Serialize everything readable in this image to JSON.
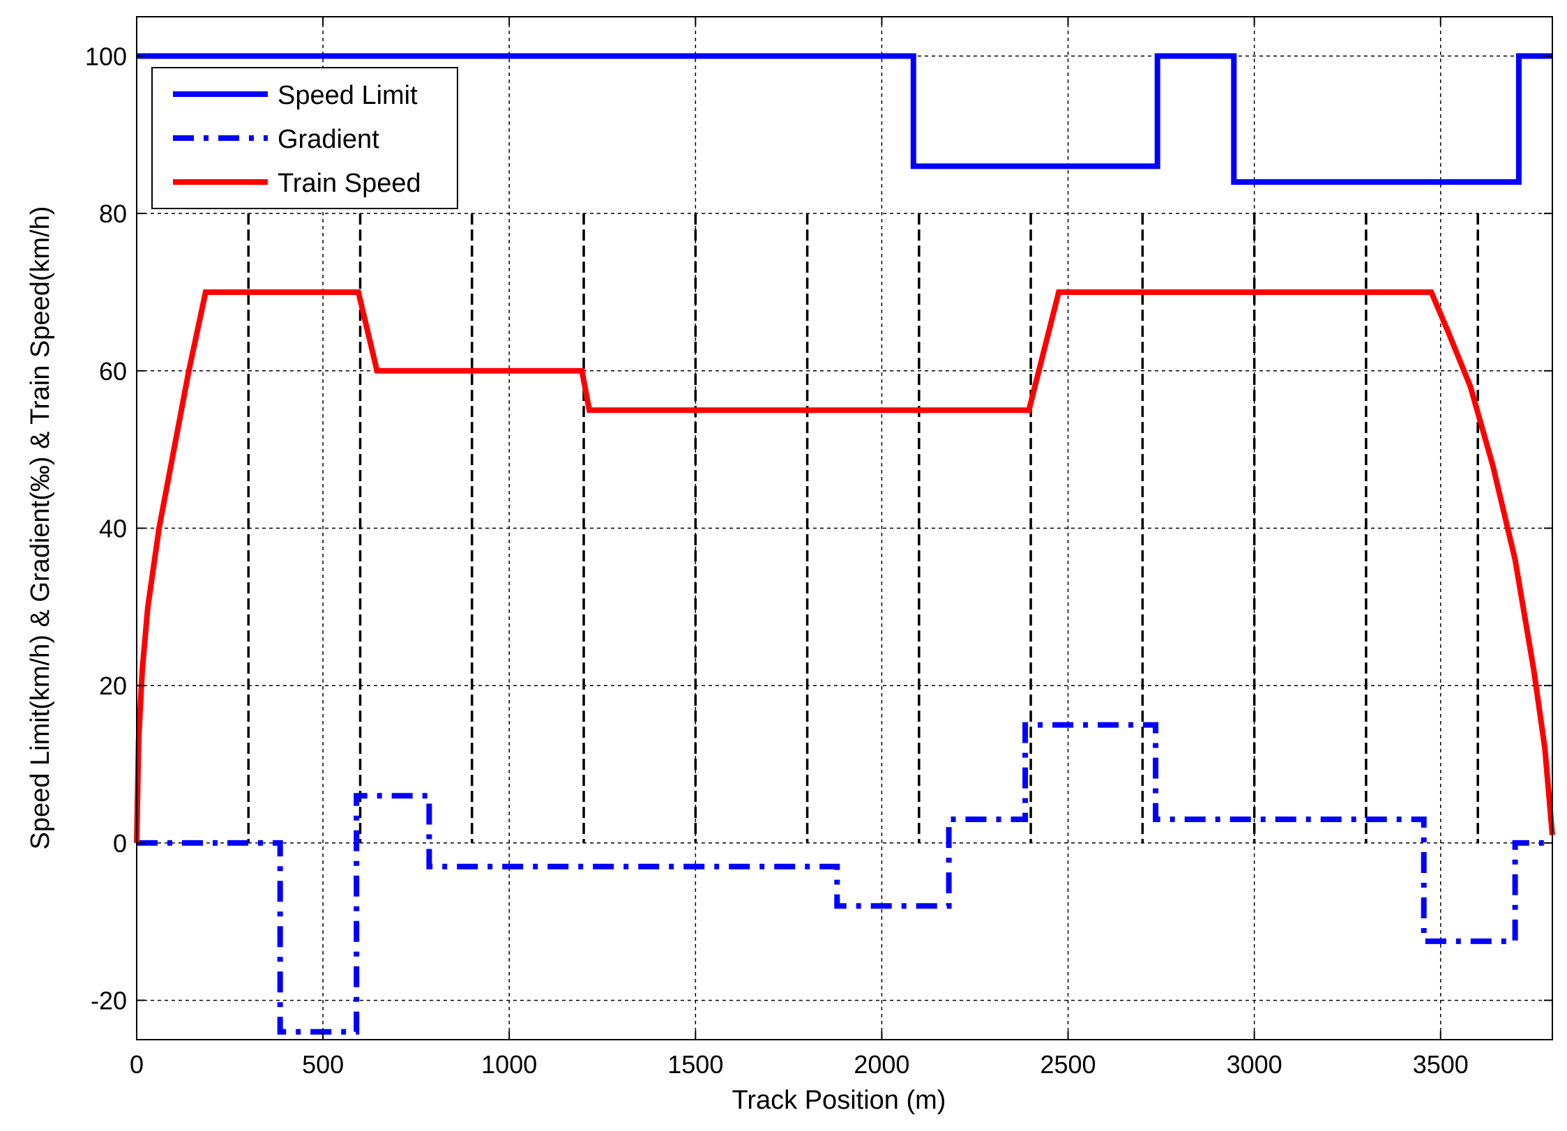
{
  "chart_data": {
    "type": "line",
    "xlabel": "Track Position (m)",
    "ylabel": "Speed Limit(km/h) & Gradient(‰) & Train Speed(km/h)",
    "xlim": [
      0,
      3800
    ],
    "ylim": [
      -25,
      105
    ],
    "xticks": [
      0,
      500,
      1000,
      1500,
      2000,
      2500,
      3000,
      3500
    ],
    "yticks": [
      -20,
      0,
      20,
      40,
      60,
      80,
      100
    ],
    "xtick_labels": [
      "0",
      "500",
      "1000",
      "1500",
      "2000",
      "2500",
      "3000",
      "3500"
    ],
    "ytick_labels": [
      "-20",
      "0",
      "20",
      "40",
      "60",
      "80",
      "100"
    ],
    "grid": true,
    "legend_position": "top-left",
    "section_boundaries_x": [
      300,
      600,
      900,
      1200,
      1500,
      1800,
      2100,
      2400,
      2700,
      3000,
      3300,
      3600
    ],
    "series": [
      {
        "name": "Speed Limit",
        "color": "#0000ff",
        "style": "solid",
        "points": [
          [
            0,
            100
          ],
          [
            2085,
            100
          ],
          [
            2085,
            86
          ],
          [
            2740,
            86
          ],
          [
            2740,
            100
          ],
          [
            2945,
            100
          ],
          [
            2945,
            84
          ],
          [
            3710,
            84
          ],
          [
            3710,
            100
          ],
          [
            3800,
            100
          ]
        ]
      },
      {
        "name": "Gradient",
        "color": "#0000ff",
        "style": "dashdot",
        "points": [
          [
            0,
            0
          ],
          [
            385,
            0
          ],
          [
            385,
            -24
          ],
          [
            590,
            -24
          ],
          [
            590,
            6
          ],
          [
            785,
            6
          ],
          [
            785,
            -3
          ],
          [
            1880,
            -3
          ],
          [
            1880,
            -8
          ],
          [
            2180,
            -8
          ],
          [
            2180,
            3
          ],
          [
            2385,
            3
          ],
          [
            2385,
            15
          ],
          [
            2735,
            15
          ],
          [
            2735,
            3
          ],
          [
            3455,
            3
          ],
          [
            3455,
            -12.5
          ],
          [
            3700,
            -12.5
          ],
          [
            3700,
            0
          ],
          [
            3800,
            0
          ]
        ]
      },
      {
        "name": "Train Speed",
        "color": "#ff0000",
        "style": "solid",
        "points": [
          [
            0,
            0
          ],
          [
            5,
            13
          ],
          [
            15,
            22
          ],
          [
            30,
            30
          ],
          [
            60,
            40
          ],
          [
            100,
            50
          ],
          [
            140,
            60
          ],
          [
            185,
            70
          ],
          [
            595,
            70
          ],
          [
            645,
            60
          ],
          [
            1195,
            60
          ],
          [
            1215,
            55
          ],
          [
            2395,
            55
          ],
          [
            2475,
            70
          ],
          [
            3475,
            70
          ],
          [
            3520,
            65
          ],
          [
            3580,
            58
          ],
          [
            3640,
            48
          ],
          [
            3700,
            36
          ],
          [
            3750,
            22
          ],
          [
            3780,
            12
          ],
          [
            3800,
            1
          ]
        ]
      }
    ]
  }
}
